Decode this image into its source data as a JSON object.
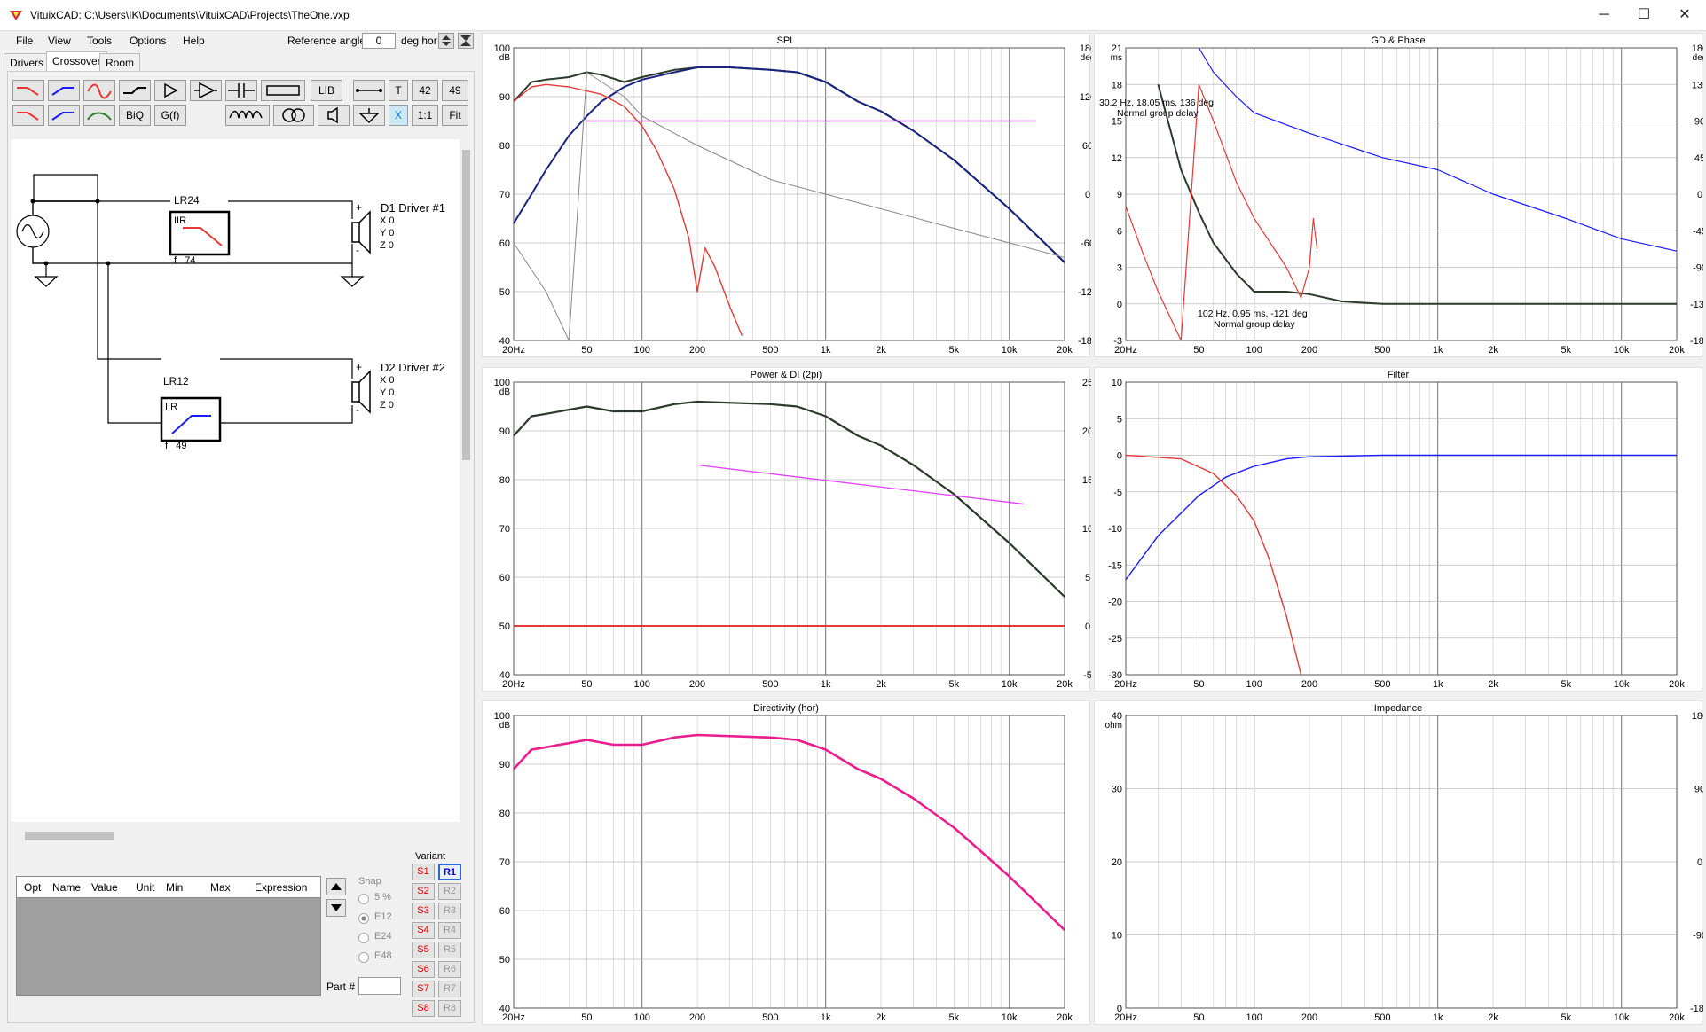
{
  "window": {
    "title": "VituixCAD: C:\\Users\\IK\\Documents\\VituixCAD\\Projects\\TheOne.vxp",
    "controls": {
      "minimize": "─",
      "maximize": "☐",
      "close": "✕"
    }
  },
  "menu": [
    "File",
    "View",
    "Tools",
    "Options",
    "Help"
  ],
  "reference": {
    "label": "Reference angle",
    "value": "0",
    "unit": "deg hor"
  },
  "tabs": [
    "Drivers",
    "Crossover",
    "Room"
  ],
  "toolbar": {
    "row1": [
      "",
      "",
      "",
      "",
      "",
      "",
      "",
      "",
      "LIB",
      "",
      "T",
      "42",
      "49"
    ],
    "row2": [
      "",
      "",
      "",
      "BiQ",
      "G(f)",
      "",
      "",
      "",
      "",
      "X",
      "1:1",
      "Fit"
    ]
  },
  "schematic": {
    "block1": {
      "name": "LR24",
      "type": "IIR",
      "freq": "f   74"
    },
    "block2": {
      "name": "LR12",
      "type": "IIR",
      "freq": "f   49"
    },
    "driver1": {
      "name": "D1 Driver #1",
      "x": "X 0",
      "y": "Y 0",
      "z": "Z 0"
    },
    "driver2": {
      "name": "D2 Driver #2",
      "x": "X 0",
      "y": "Y 0",
      "z": "Z 0"
    },
    "plus": "+",
    "minus": "-"
  },
  "opt_table": {
    "headers": [
      "Opt",
      "Name",
      "Value",
      "Unit",
      "Min",
      "Max",
      "Expression"
    ]
  },
  "snap": {
    "title": "Snap",
    "options": [
      "5 %",
      "E12",
      "E24",
      "E48"
    ],
    "selected": "E12"
  },
  "part": {
    "label": "Part #",
    "value": ""
  },
  "variant": {
    "title": "Variant",
    "s": [
      "S1",
      "S2",
      "S3",
      "S4",
      "S5",
      "S6",
      "S7",
      "S8"
    ],
    "r": [
      "R1",
      "R2",
      "R3",
      "R4",
      "R5",
      "R6",
      "R7",
      "R8"
    ],
    "active_r": "R1"
  },
  "freq_ticks": [
    "20Hz",
    "50",
    "100",
    "200",
    "500",
    "1k",
    "2k",
    "5k",
    "10k",
    "20k"
  ],
  "graphs": {
    "spl": {
      "title": "SPL",
      "y_unit": "dB",
      "y_ticks": [
        "100",
        "90",
        "80",
        "70",
        "60",
        "50",
        "40"
      ],
      "y2_unit": "deg",
      "y2_ticks": [
        "180",
        "120",
        "60",
        "0",
        "-60",
        "-120",
        "-180"
      ]
    },
    "gd": {
      "title": "GD & Phase",
      "y_unit": "ms",
      "y_ticks": [
        "21",
        "18",
        "15",
        "12",
        "9",
        "6",
        "3",
        "0",
        "-3"
      ],
      "y2_unit": "deg",
      "y2_ticks": [
        "180",
        "135",
        "90",
        "45",
        "0",
        "-45",
        "-90",
        "-135",
        "-180"
      ],
      "annot1_line1": "30.2 Hz, 18.05 ms, 136 deg",
      "annot1_line2": "Normal group delay",
      "annot2_line1": "102 Hz, 0.95 ms, -121 deg",
      "annot2_line2": "Normal group delay"
    },
    "power": {
      "title": "Power & DI (2pi)",
      "y_unit": "dB",
      "y_ticks": [
        "100",
        "90",
        "80",
        "70",
        "60",
        "50",
        "40"
      ],
      "y2_ticks": [
        "25",
        "20",
        "15",
        "10",
        "5",
        "0",
        "-5"
      ]
    },
    "filter": {
      "title": "Filter",
      "y_ticks": [
        "10",
        "5",
        "0",
        "-5",
        "-10",
        "-15",
        "-20",
        "-25",
        "-30"
      ]
    },
    "directivity": {
      "title": "Directivity (hor)",
      "y_unit": "dB",
      "y_ticks": [
        "100",
        "90",
        "80",
        "70",
        "60",
        "50",
        "40"
      ]
    },
    "impedance": {
      "title": "Impedance",
      "y_unit": "ohm",
      "y_ticks": [
        "40",
        "30",
        "20",
        "10",
        "0"
      ],
      "y2_ticks": [
        "180",
        "90",
        "0",
        "-90",
        "-180"
      ]
    }
  },
  "chart_data": [
    {
      "type": "line",
      "title": "SPL",
      "xscale": "log",
      "xlim": [
        20,
        20000
      ],
      "ylim": [
        40,
        100
      ],
      "y2lim": [
        -180,
        180
      ],
      "series": [
        {
          "x": [
            20,
            25,
            30,
            40,
            50,
            60,
            80,
            100,
            150,
            200,
            300,
            500,
            700,
            1000,
            1500,
            2000,
            3000,
            5000,
            10000,
            20000
          ],
          "values": [
            89,
            93,
            93.5,
            94,
            95,
            94.5,
            93,
            94,
            95.5,
            96,
            96,
            95.5,
            95,
            93,
            89,
            87,
            83,
            77,
            67,
            56
          ]
        },
        {
          "x": [
            20,
            25,
            30,
            40,
            50,
            60,
            80,
            100,
            150,
            200,
            300,
            500,
            700,
            1000,
            1500,
            2000,
            3000,
            5000,
            10000,
            20000
          ],
          "values": [
            64,
            70,
            75,
            82,
            86,
            89,
            92,
            93.5,
            95,
            96,
            96,
            95.5,
            95,
            93,
            89,
            87,
            83,
            77,
            67,
            56
          ]
        },
        {
          "x": [
            20,
            25,
            30,
            40,
            60,
            80,
            100,
            120,
            150,
            180,
            200,
            220,
            250,
            300,
            350
          ],
          "values": [
            89,
            92,
            92.5,
            92,
            90.5,
            88,
            84,
            79,
            71,
            61,
            50,
            59,
            55,
            47,
            41
          ]
        },
        {
          "x": [
            50,
            14000
          ],
          "values": [
            85,
            85
          ]
        },
        {
          "x": [
            20,
            30,
            40,
            50,
            80,
            100,
            200,
            500,
            1000,
            2000,
            5000,
            10000,
            20000
          ],
          "values": [
            60,
            50,
            40,
            95,
            90,
            86,
            80,
            73,
            70,
            67,
            63,
            60,
            57
          ]
        }
      ]
    },
    {
      "type": "line",
      "title": "GD & Phase",
      "xscale": "log",
      "xlim": [
        20,
        20000
      ],
      "ylim": [
        -3,
        21
      ],
      "y2lim": [
        -180,
        180
      ],
      "series": [
        {
          "x": [
            30,
            40,
            50,
            60,
            80,
            100,
            150,
            200,
            300,
            500,
            1000,
            2000,
            5000,
            20000
          ],
          "values": [
            18,
            11,
            7.5,
            5,
            2.5,
            1,
            1,
            0.8,
            0.2,
            0,
            0,
            0,
            0,
            0
          ]
        },
        {
          "x": [
            50,
            60,
            80,
            100,
            200,
            500,
            1000,
            2000,
            5000,
            10000,
            20000
          ],
          "values": [
            180,
            150,
            120,
            100,
            75,
            45,
            30,
            0,
            -30,
            -55,
            -70
          ]
        },
        {
          "x": [
            20,
            25,
            30,
            40,
            50,
            60,
            80,
            100,
            150,
            180,
            200,
            210,
            220
          ],
          "values": [
            8,
            4,
            1,
            -3,
            18,
            15,
            10,
            7,
            3,
            0.5,
            3,
            7,
            4.5
          ]
        }
      ]
    },
    {
      "type": "line",
      "title": "Power & DI (2pi)",
      "xscale": "log",
      "xlim": [
        20,
        20000
      ],
      "ylim": [
        40,
        100
      ],
      "y2lim": [
        -5,
        25
      ],
      "series": [
        {
          "x": [
            20,
            25,
            30,
            50,
            70,
            100,
            150,
            200,
            500,
            700,
            1000,
            1500,
            2000,
            3000,
            5000,
            10000,
            20000
          ],
          "values": [
            89,
            93,
            93.5,
            95,
            94,
            94,
            95.5,
            96,
            95.5,
            95,
            93,
            89,
            87,
            83,
            77,
            67,
            56
          ]
        },
        {
          "x": [
            200,
            12000
          ],
          "values": [
            83,
            75
          ]
        },
        {
          "x": [
            20,
            20000
          ],
          "values": [
            50,
            50
          ]
        }
      ]
    },
    {
      "type": "line",
      "title": "Filter",
      "xscale": "log",
      "xlim": [
        20,
        20000
      ],
      "ylim": [
        -30,
        10
      ],
      "series": [
        {
          "x": [
            20,
            30,
            50,
            70,
            100,
            150,
            200,
            500,
            1000,
            20000
          ],
          "values": [
            -17,
            -11,
            -5.5,
            -3,
            -1.5,
            -0.5,
            -0.2,
            0,
            0,
            0
          ]
        },
        {
          "x": [
            20,
            40,
            60,
            80,
            100,
            120,
            150,
            180
          ],
          "values": [
            0,
            -0.5,
            -2.5,
            -5.5,
            -9,
            -14,
            -22,
            -30
          ]
        }
      ]
    },
    {
      "type": "line",
      "title": "Directivity (hor)",
      "xscale": "log",
      "xlim": [
        20,
        20000
      ],
      "ylim": [
        40,
        100
      ],
      "series": [
        {
          "x": [
            20,
            25,
            30,
            50,
            70,
            100,
            150,
            200,
            500,
            700,
            1000,
            1500,
            2000,
            3000,
            5000,
            10000,
            20000
          ],
          "values": [
            89,
            93,
            93.5,
            95,
            94,
            94,
            95.5,
            96,
            95.5,
            95,
            93,
            89,
            87,
            83,
            77,
            67,
            56
          ]
        }
      ]
    },
    {
      "type": "line",
      "title": "Impedance",
      "xscale": "log",
      "xlim": [
        20,
        20000
      ],
      "ylim": [
        0,
        40
      ],
      "y2lim": [
        -180,
        180
      ],
      "series": []
    }
  ],
  "colors": {
    "black_curve": "#2b3a2b",
    "blue": "#1a1aff",
    "navy": "#1a237e",
    "red": "#e53935",
    "magenta": "#e040fb",
    "gray": "#888888",
    "pink": "#e91e8c",
    "accent": "#0078d7"
  },
  "icons": [
    "vituixcad-app-icon",
    "minimize-icon",
    "maximize-icon",
    "close-icon",
    "arrow-up-icon",
    "arrow-down-icon",
    "sine-source-icon",
    "speaker-icon",
    "ground-icon"
  ]
}
